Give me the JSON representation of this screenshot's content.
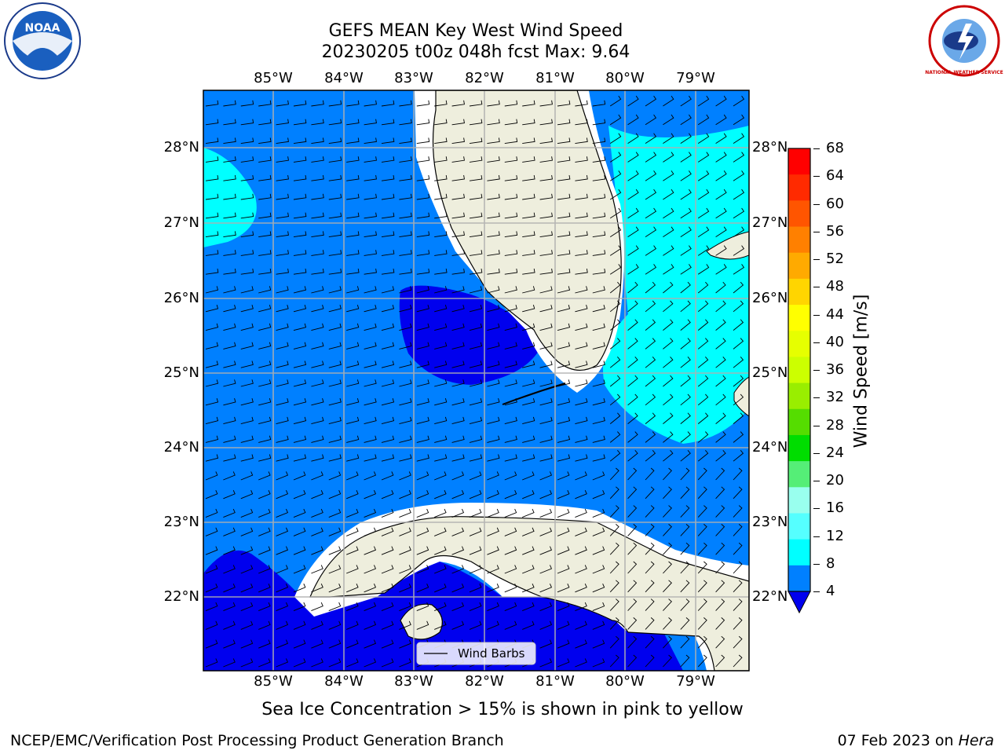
{
  "header": {
    "title_line1": "GEFS MEAN Key West Wind Speed",
    "title_line2": "20230205 t00z 048h fcst   Max: 9.64"
  },
  "logos": {
    "left": {
      "icon": "noaa-logo-icon",
      "text": "NOAA"
    },
    "right": {
      "icon": "nws-logo-icon",
      "text": "NATIONAL WEATHER SERVICE"
    }
  },
  "map": {
    "lon_labels": [
      "85°W",
      "84°W",
      "83°W",
      "82°W",
      "81°W",
      "80°W",
      "79°W"
    ],
    "lat_labels": [
      "28°N",
      "27°N",
      "26°N",
      "25°N",
      "24°N",
      "23°N",
      "22°N"
    ],
    "legend_label": "Wind Barbs"
  },
  "colorbar": {
    "label": "Wind Speed [m/s]",
    "ticks": [
      "68",
      "64",
      "60",
      "56",
      "52",
      "48",
      "44",
      "40",
      "36",
      "32",
      "28",
      "24",
      "20",
      "16",
      "12",
      "8",
      "4"
    ],
    "colors": [
      "#ff0000",
      "#ff2a00",
      "#ff5500",
      "#ff8000",
      "#ffaa00",
      "#ffd500",
      "#ffff00",
      "#e6ff00",
      "#ccff00",
      "#99ee00",
      "#55dd00",
      "#00dd00",
      "#55ee77",
      "#99ffee",
      "#55ffff",
      "#00ffff",
      "#0080ff"
    ],
    "under_color": "#0000ee"
  },
  "colors": {
    "speed_4_8": "#0080ff",
    "speed_8_12": "#00ffff",
    "speed_below_4": "#0000ee",
    "land": "#eeeedd"
  },
  "footer": {
    "note": "Sea Ice Concentration > 15% is shown in pink to yellow",
    "branch": "NCEP/EMC/Verification Post Processing Product Generation Branch",
    "date": "07 Feb 2023 on ",
    "machine": "Hera"
  }
}
